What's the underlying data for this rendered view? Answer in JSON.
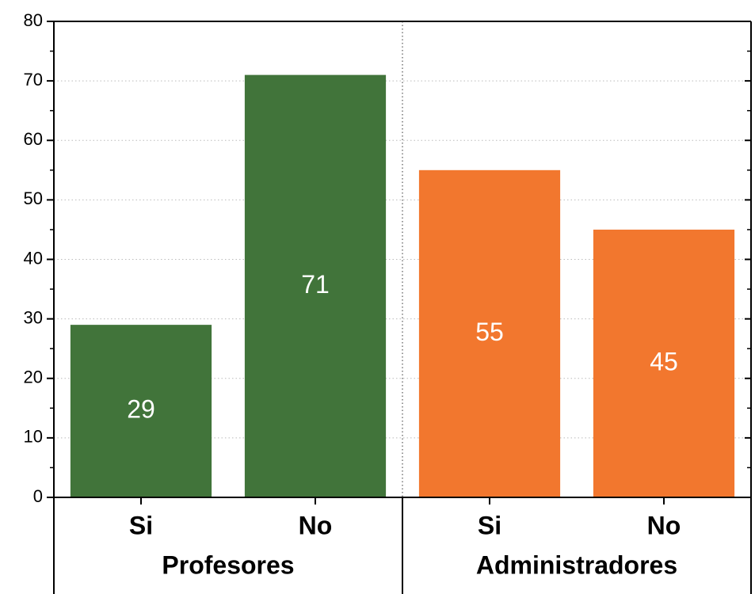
{
  "chart_data": {
    "type": "bar",
    "groups": [
      {
        "name": "Profesores",
        "color": "#41743a",
        "categories": [
          "Si",
          "No"
        ],
        "values": [
          29,
          71
        ]
      },
      {
        "name": "Administradores",
        "color": "#f2772e",
        "categories": [
          "Si",
          "No"
        ],
        "values": [
          55,
          45
        ]
      }
    ],
    "ylim": [
      0,
      80
    ],
    "yticks": [
      0,
      10,
      20,
      30,
      40,
      50,
      60,
      70,
      80
    ],
    "yminor": [
      5,
      15,
      25,
      35,
      45,
      55,
      65,
      75
    ],
    "grid": true
  }
}
